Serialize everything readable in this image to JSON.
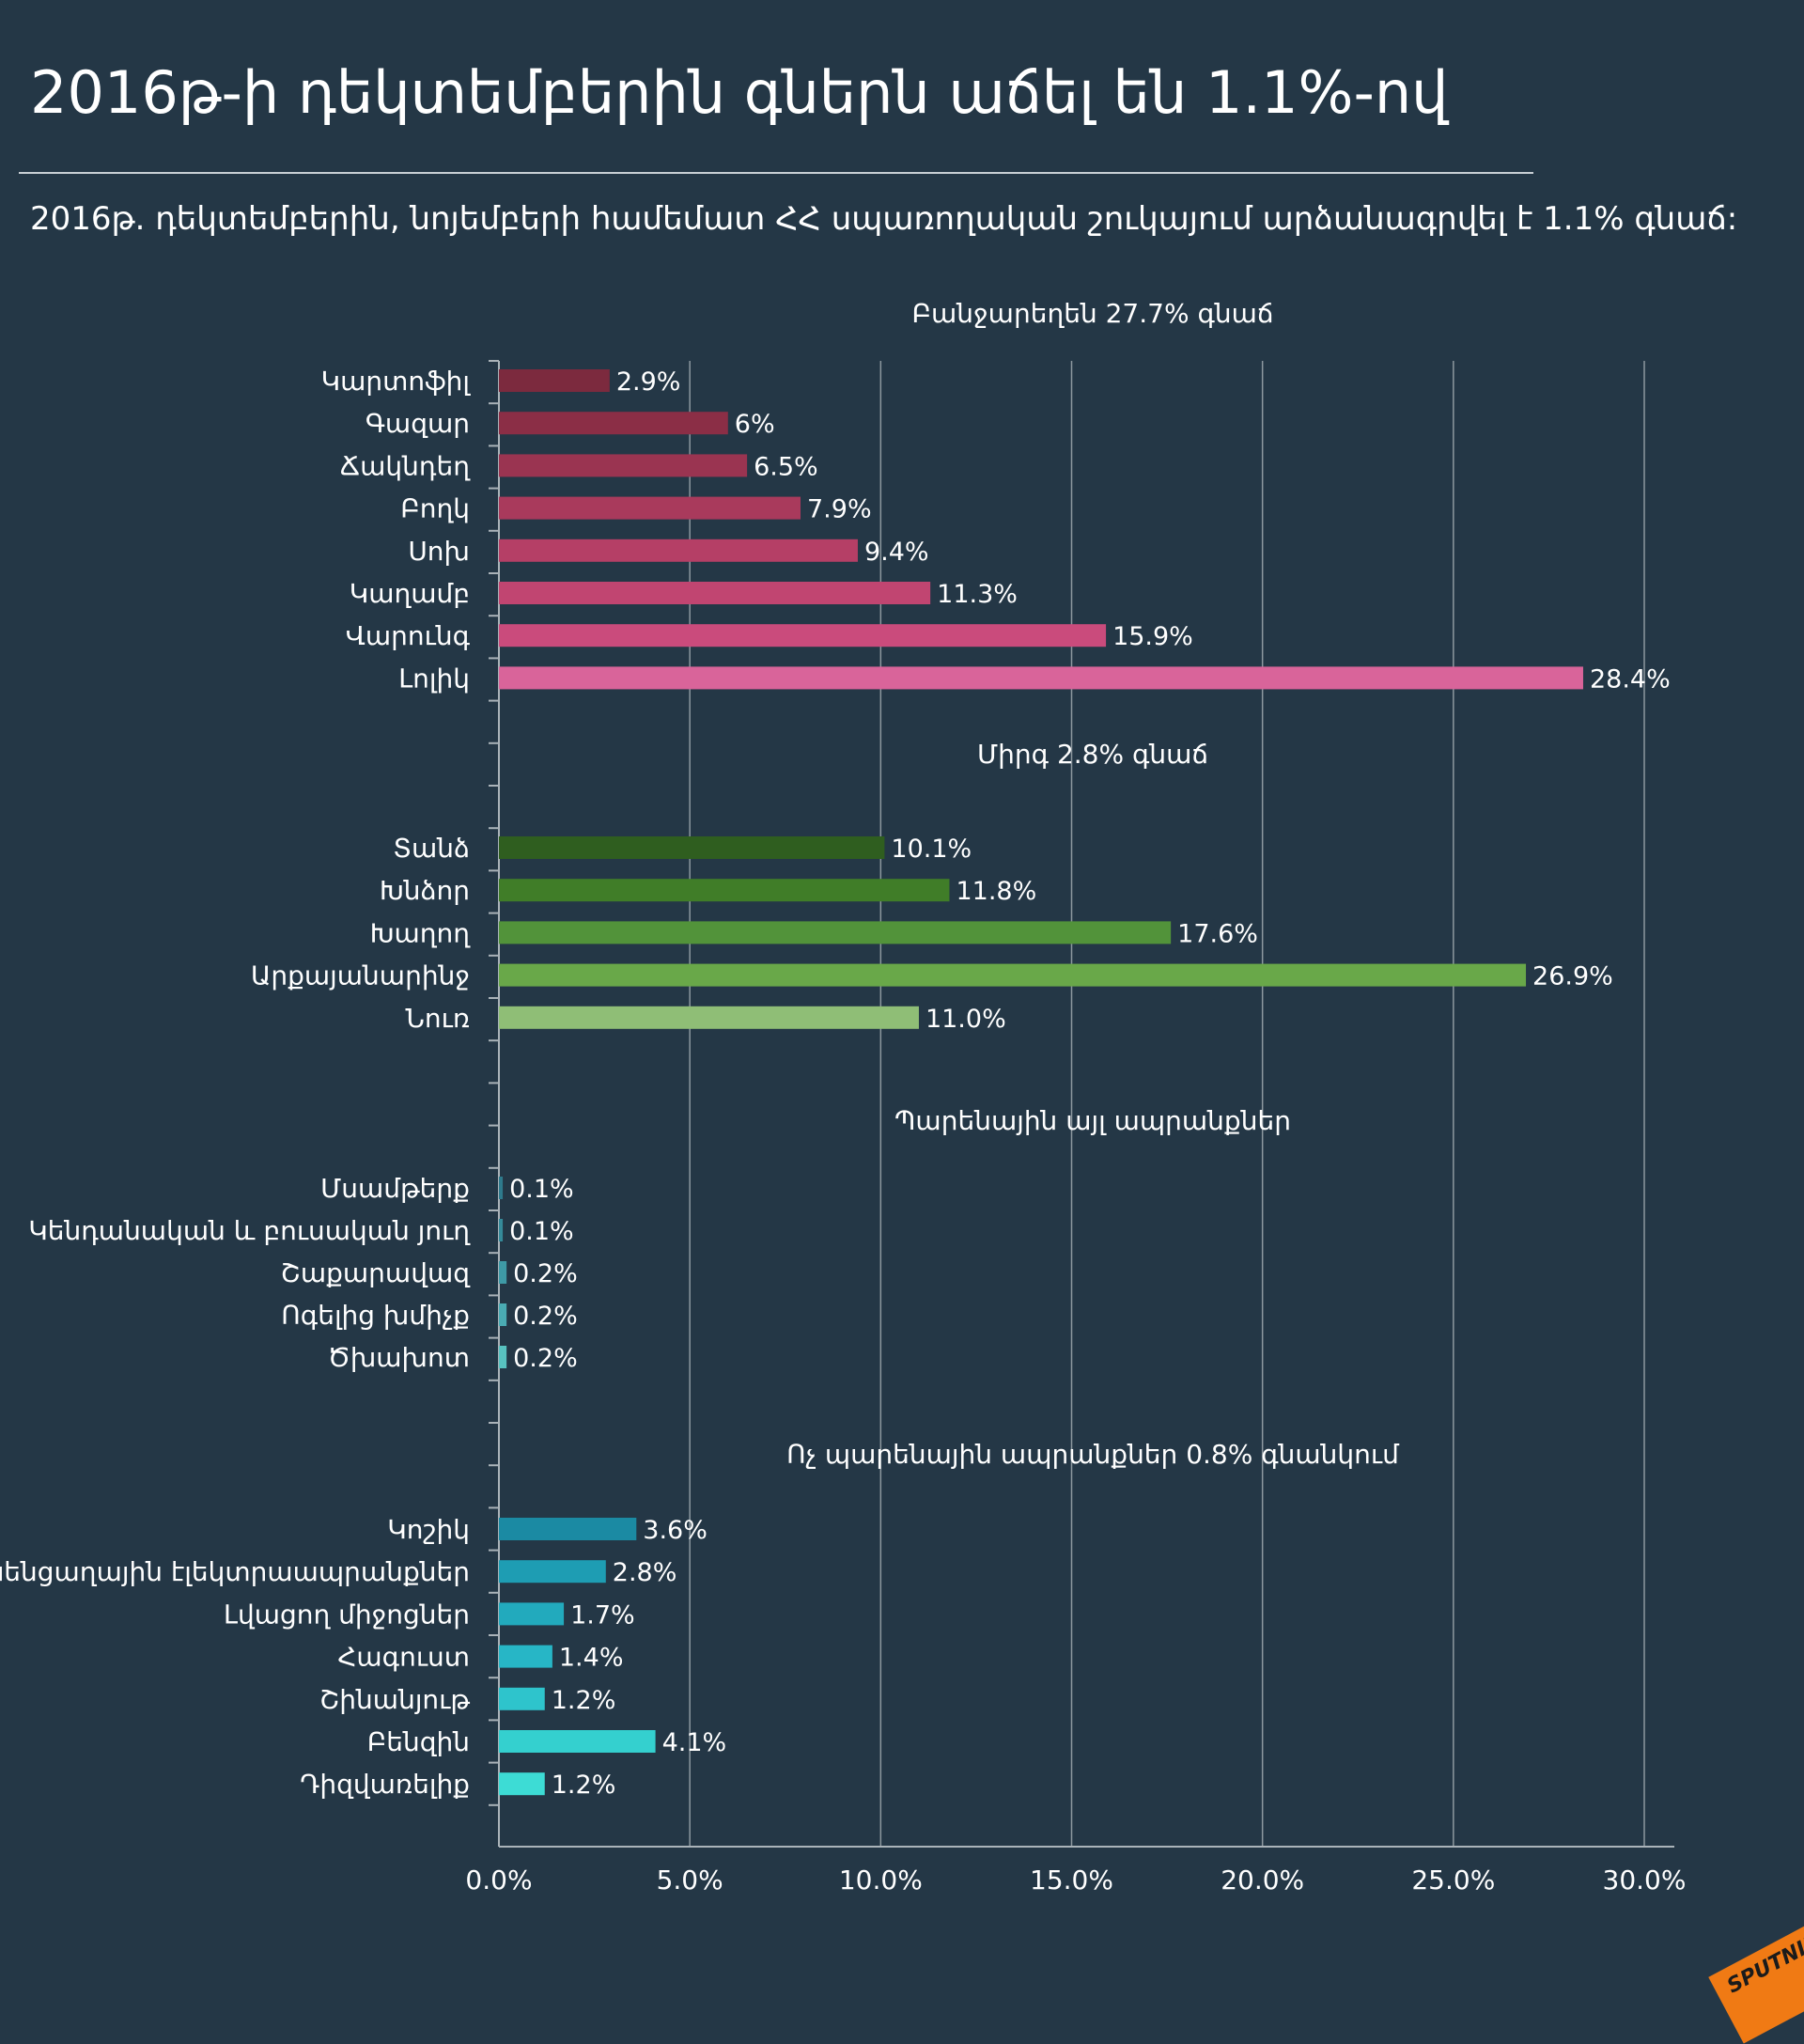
{
  "header": {
    "title": "2016թ-ի դեկտեմբերին գներն աճել են 1.1%-ով",
    "subtitle": "2016թ. դեկտեմբերին, նոյեմբերի համեմատ ՀՀ սպառողական շուկայում արձանագրվել է 1.1% գնաճ:"
  },
  "logo_text": "SPUTNIK",
  "chart_data": {
    "type": "bar",
    "orientation": "horizontal",
    "xlim": [
      0,
      30
    ],
    "xticks": [
      "0.0%",
      "5.0%",
      "10.0%",
      "15.0%",
      "20.0%",
      "25.0%",
      "30.0%"
    ],
    "xtick_values": [
      0,
      5,
      10,
      15,
      20,
      25,
      30
    ],
    "grid": "vertical",
    "groups": [
      {
        "heading": "Բանջարեղեն 27.7% գնաճ",
        "categories": [
          "Կարտոֆիլ",
          "Գազար",
          "Ճակնդեղ",
          "Բողկ",
          "Սոխ",
          "Կաղամբ",
          "Վարունգ",
          "Լոլիկ"
        ],
        "values": [
          2.9,
          6.0,
          6.5,
          7.9,
          9.4,
          11.3,
          15.9,
          28.4
        ],
        "labels": [
          "2.9%",
          "6%",
          "6.5%",
          "7.9%",
          "9.4%",
          "11.3%",
          "15.9%",
          "28.4%"
        ],
        "colors": [
          "#7c2a3e",
          "#8b2e46",
          "#9a3451",
          "#a93a5c",
          "#b53f66",
          "#c14571",
          "#ca4b7c",
          "#d9649a"
        ]
      },
      {
        "heading": "Միրգ 2.8% գնաճ",
        "categories": [
          "Տանձ",
          "Խնձոր",
          "Խաղող",
          "Արքայանարինջ",
          "Նուռ"
        ],
        "values": [
          10.1,
          11.8,
          17.6,
          26.9,
          11.0
        ],
        "labels": [
          "10.1%",
          "11.8%",
          "17.6%",
          "26.9%",
          "11.0%"
        ],
        "colors": [
          "#2f5e1f",
          "#407d28",
          "#52933a",
          "#69a849",
          "#8fbe76"
        ]
      },
      {
        "heading": "Պարենային այլ ապրանքներ",
        "categories": [
          "Մսամթերք",
          "Կենդանական և բուսական յուղ",
          "Շաքարավազ",
          "Ոգելից խմիչք",
          "Ծխախոտ"
        ],
        "values": [
          0.1,
          0.1,
          0.2,
          0.2,
          0.2
        ],
        "labels": [
          "0.1%",
          "0.1%",
          "0.2%",
          "0.2%",
          "0.2%"
        ],
        "colors": [
          "#2e7a8c",
          "#358a99",
          "#3e9aa6",
          "#4aabb3",
          "#58c2c0"
        ]
      },
      {
        "heading": "Ոչ պարենային ապրանքներ 0.8% գնանկում",
        "categories": [
          "Կոշիկ",
          "Կենցաղային էլեկտրաապրանքներ",
          "Լվացող միջոցներ",
          "Հագուստ",
          "Շինանյութ",
          "Բենզին",
          "Դիզվառելիք"
        ],
        "values": [
          3.6,
          2.8,
          1.7,
          1.4,
          1.2,
          4.1,
          1.2
        ],
        "labels": [
          "3.6%",
          "2.8%",
          "1.7%",
          "1.4%",
          "1.2%",
          "4.1%",
          "1.2%"
        ],
        "colors": [
          "#1b8aa3",
          "#1e9db3",
          "#22aabd",
          "#27b6c6",
          "#2ec4cc",
          "#34d0cf",
          "#3ddcd5"
        ]
      }
    ]
  }
}
